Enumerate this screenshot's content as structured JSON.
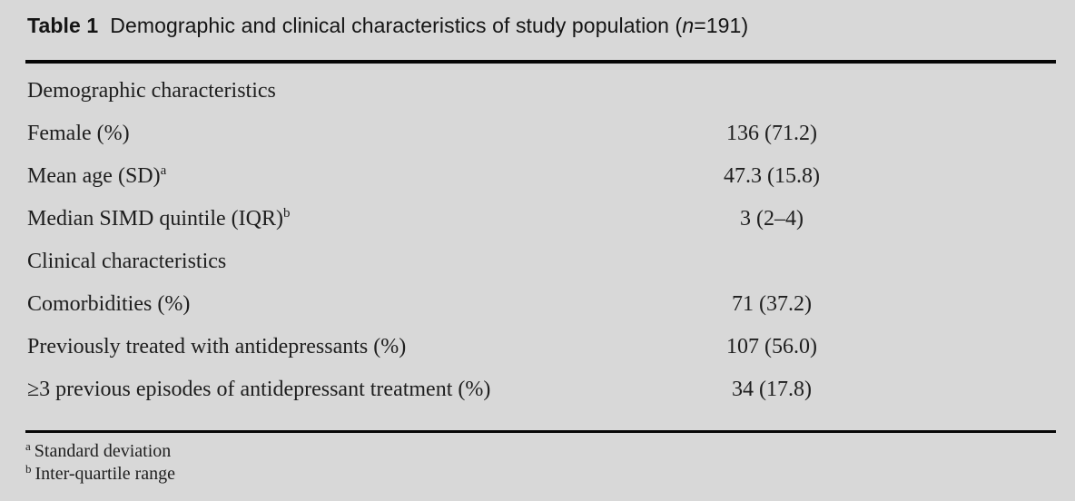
{
  "title": {
    "label": "Table 1",
    "text": "Demographic and clinical characteristics of study population (",
    "n_symbol": "n",
    "n_suffix": "=191)"
  },
  "table": {
    "rows": [
      {
        "type": "section",
        "label": "Demographic characteristics",
        "sup": "",
        "value": ""
      },
      {
        "type": "item",
        "label": "Female (%)",
        "sup": "",
        "value": "136 (71.2)"
      },
      {
        "type": "item",
        "label": "Mean age (SD)",
        "sup": "a",
        "value": "47.3 (15.8)"
      },
      {
        "type": "item",
        "label": "Median SIMD quintile (IQR)",
        "sup": "b",
        "value": "3 (2–4)"
      },
      {
        "type": "section",
        "label": "Clinical characteristics",
        "sup": "",
        "value": ""
      },
      {
        "type": "item",
        "label": "Comorbidities (%)",
        "sup": "",
        "value": "71 (37.2)"
      },
      {
        "type": "item",
        "label": "Previously treated with antidepressants (%)",
        "sup": "",
        "value": "107 (56.0)"
      },
      {
        "type": "item",
        "label": "≥3 previous episodes of antidepressant treatment (%)",
        "sup": "",
        "value": "34 (17.8)"
      }
    ]
  },
  "footnotes": [
    {
      "marker": "a",
      "text": "Standard deviation"
    },
    {
      "marker": "b",
      "text": "Inter-quartile range"
    }
  ],
  "colors": {
    "background": "#d8d8d8",
    "text": "#1e1e1e",
    "rule": "#070707"
  }
}
